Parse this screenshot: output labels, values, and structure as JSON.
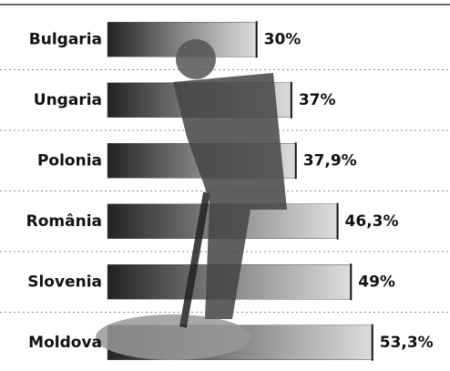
{
  "chart_data": {
    "type": "hbar",
    "categories": [
      "Bulgaria",
      "Ungaria",
      "Polonia",
      "România",
      "Slovenia",
      "Moldova"
    ],
    "values": [
      30,
      37,
      37.9,
      46.3,
      49,
      53.3
    ],
    "value_labels": [
      "30%",
      "37%",
      "37,9%",
      "46,3%",
      "49%",
      "53,3%"
    ],
    "color": "#555555",
    "xlim": [
      0,
      55
    ]
  }
}
